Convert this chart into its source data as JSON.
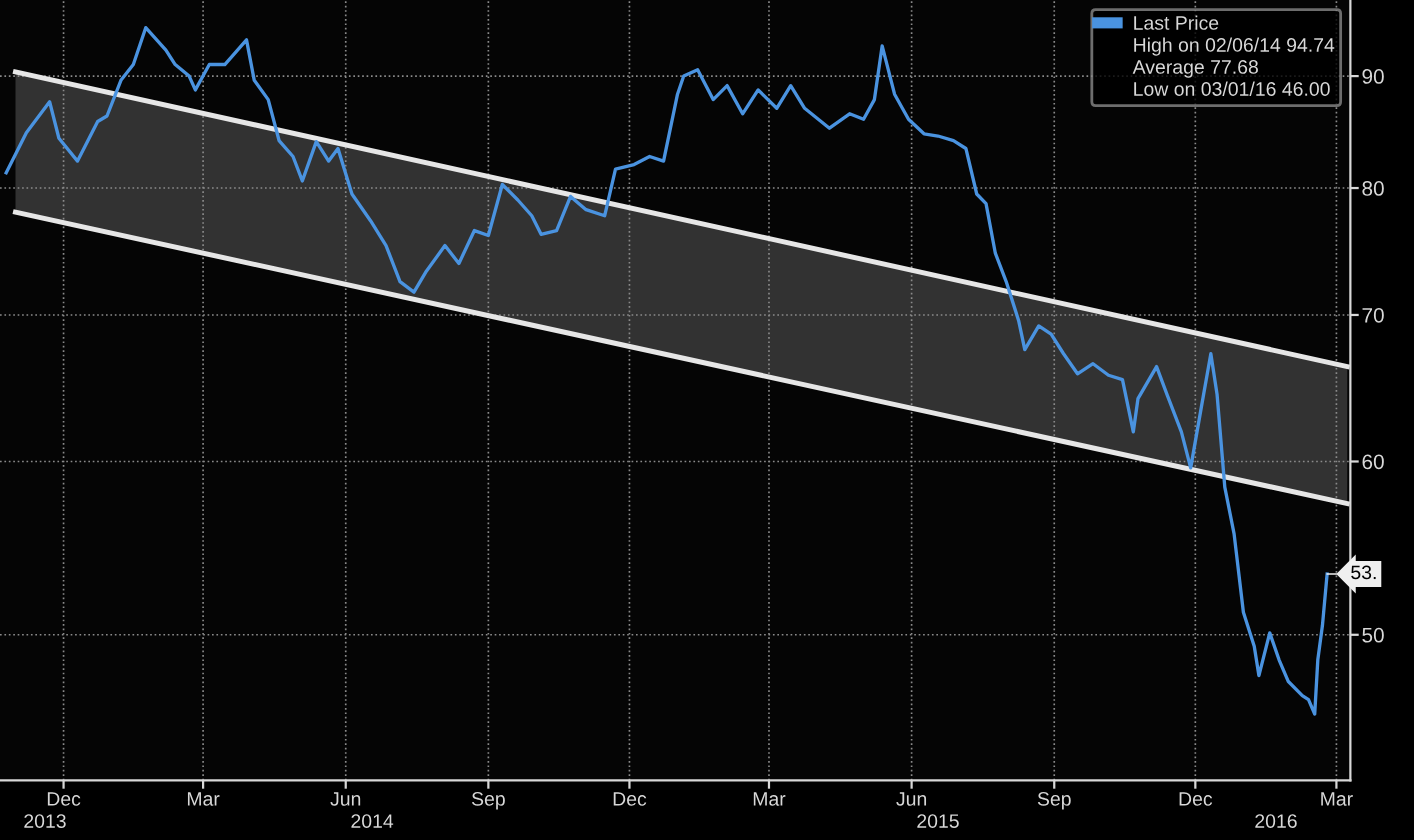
{
  "chart_data": {
    "type": "line",
    "log": true,
    "grid": true,
    "legend": "top right",
    "xlim": [
      "2013-11-04",
      "2016-03-24"
    ],
    "ylim": [
      42.9,
      97.5
    ],
    "yticks": [
      50,
      60,
      70,
      80,
      90
    ],
    "xticks": [
      {
        "value": "2013-12-15",
        "label": "Dec"
      },
      {
        "value": "2014-03-15",
        "label": "Mar"
      },
      {
        "value": "2014-06-15",
        "label": "Jun"
      },
      {
        "value": "2014-09-15",
        "label": "Sep"
      },
      {
        "value": "2014-12-15",
        "label": "Dec"
      },
      {
        "value": "2015-03-15",
        "label": "Mar"
      },
      {
        "value": "2015-06-15",
        "label": "Jun"
      },
      {
        "value": "2015-09-15",
        "label": "Sep"
      },
      {
        "value": "2015-12-15",
        "label": "Dec"
      },
      {
        "value": "2016-03-15",
        "label": "Mar"
      }
    ],
    "x2lim": [
      "2013-11-04",
      "2016-03-24"
    ],
    "x2ticks": [
      {
        "value": "2013-12-03",
        "label": "2013"
      },
      {
        "value": "2014-07-02",
        "label": "2014"
      },
      {
        "value": "2015-07-02",
        "label": "2015"
      },
      {
        "value": "2016-02-05",
        "label": "2016"
      }
    ],
    "series": [
      {
        "type": "line",
        "color": "#e6e6e6",
        "x": [
          "2013-11-14",
          "2016-03-22"
        ],
        "values": [
          90.4,
          66.3
        ]
      },
      {
        "type": "line",
        "color": "#e6e6e6",
        "x": [
          "2013-11-14",
          "2016-03-22"
        ],
        "values": [
          78.0,
          57.4
        ],
        "lower": [
          78.0,
          57.4
        ],
        "upper": [
          90.4,
          66.3
        ]
      },
      {
        "name": "Last Price",
        "color": "#4a93e0",
        "x": [
          "2013-11-08",
          "2013-11-21",
          "2013-12-06",
          "2013-12-12",
          "2013-12-24",
          "2014-01-06",
          "2014-01-12",
          "2014-01-21",
          "2014-01-29",
          "2014-02-06",
          "2014-02-19",
          "2014-02-25",
          "2014-03-06",
          "2014-03-10",
          "2014-03-19",
          "2014-03-29",
          "2014-04-12",
          "2014-04-17",
          "2014-04-26",
          "2014-05-03",
          "2014-05-12",
          "2014-05-18",
          "2014-05-27",
          "2014-06-04",
          "2014-06-10",
          "2014-06-19",
          "2014-07-01",
          "2014-07-11",
          "2014-07-20",
          "2014-07-29",
          "2014-08-06",
          "2014-08-18",
          "2014-08-27",
          "2014-09-06",
          "2014-09-15",
          "2014-09-24",
          "2014-10-04",
          "2014-10-13",
          "2014-10-19",
          "2014-10-29",
          "2014-11-07",
          "2014-11-17",
          "2014-11-29",
          "2014-12-06",
          "2014-12-18",
          "2014-12-28",
          "2015-01-06",
          "2015-01-15",
          "2015-01-19",
          "2015-01-28",
          "2015-02-07",
          "2015-02-16",
          "2015-02-26",
          "2015-03-08",
          "2015-03-20",
          "2015-03-29",
          "2015-04-07",
          "2015-04-23",
          "2015-05-06",
          "2015-05-15",
          "2015-05-22",
          "2015-05-27",
          "2015-06-04",
          "2015-06-13",
          "2015-06-23",
          "2015-07-02",
          "2015-07-12",
          "2015-07-20",
          "2015-07-27",
          "2015-08-02",
          "2015-08-08",
          "2015-08-15",
          "2015-08-23",
          "2015-08-27",
          "2015-09-05",
          "2015-09-13",
          "2015-09-21",
          "2015-09-30",
          "2015-10-10",
          "2015-10-20",
          "2015-10-29",
          "2015-11-05",
          "2015-11-08",
          "2015-11-20",
          "2015-11-27",
          "2015-12-06",
          "2015-12-12",
          "2015-12-19",
          "2015-12-25",
          "2015-12-29",
          "2016-01-03",
          "2016-01-09",
          "2016-01-15",
          "2016-01-22",
          "2016-01-25",
          "2016-02-01",
          "2016-02-07",
          "2016-02-13",
          "2016-02-22",
          "2016-02-26",
          "2016-03-01",
          "2016-03-03",
          "2016-03-06",
          "2016-03-09"
        ],
        "values": [
          81.3,
          84.8,
          87.6,
          84.3,
          82.3,
          85.8,
          86.3,
          89.6,
          91.1,
          94.7,
          92.5,
          91.1,
          90.0,
          88.7,
          91.1,
          91.1,
          93.5,
          89.6,
          87.8,
          84.1,
          82.7,
          80.6,
          84.0,
          82.3,
          83.4,
          79.5,
          77.3,
          75.3,
          72.5,
          71.7,
          73.3,
          75.3,
          73.9,
          76.5,
          76.1,
          80.3,
          79.0,
          77.7,
          76.2,
          76.5,
          79.3,
          78.2,
          77.7,
          81.6,
          82.0,
          82.7,
          82.3,
          88.3,
          90.0,
          90.6,
          87.8,
          89.1,
          86.5,
          88.7,
          87.0,
          89.1,
          87.0,
          85.2,
          86.5,
          86.0,
          87.8,
          92.9,
          88.3,
          86.0,
          84.7,
          84.5,
          84.1,
          83.4,
          79.5,
          78.7,
          74.7,
          72.5,
          69.6,
          67.5,
          69.2,
          68.6,
          67.2,
          65.8,
          66.5,
          65.7,
          65.4,
          61.9,
          64.1,
          66.3,
          64.3,
          61.9,
          59.6,
          63.6,
          67.2,
          64.4,
          58.4,
          55.6,
          51.2,
          49.4,
          47.9,
          50.1,
          48.7,
          47.6,
          46.9,
          46.7,
          46.0,
          48.7,
          50.5,
          53.3
        ]
      }
    ],
    "annotations": [
      "High on 02/06/14 94.74",
      "Average 77.68",
      "Low on 03/01/16 46.00",
      {
        "text": "53.",
        "x": "2016-03-09",
        "y": 53.3
      }
    ]
  }
}
